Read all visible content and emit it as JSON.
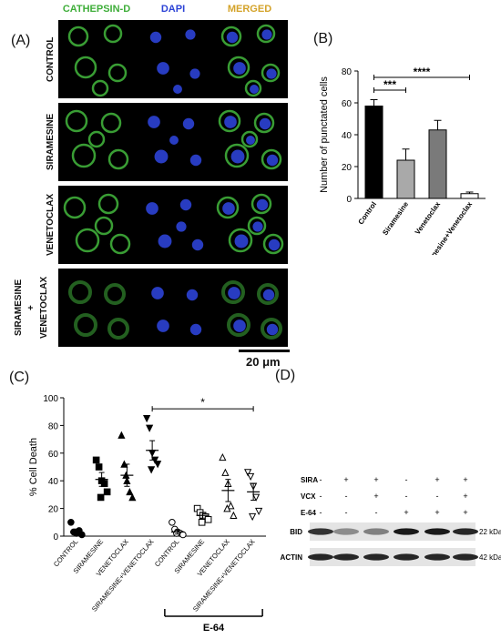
{
  "panels": {
    "a": "(A)",
    "b": "(B)",
    "c": "(C)",
    "d": "(D)"
  },
  "colors": {
    "green": "#3fae3a",
    "blue": "#2c43d6",
    "merged": "#d4a32a",
    "bar_control": "#000000",
    "bar_siramesine": "#a9a9a9",
    "bar_venetoclax": "#7a7a7a",
    "bar_combo": "#ffffff"
  },
  "micrograph": {
    "columns": [
      "CATHEPSIN-D",
      "DAPI",
      "MERGED"
    ],
    "rows": [
      "CONTROL",
      "SIRAMESINE",
      "VENETOCLAX",
      "SIRAMESINE\n+\nVENETOCLAX"
    ],
    "scale_bar": "20 μm"
  },
  "chart_data": [
    {
      "type": "bar",
      "panel": "B",
      "ylabel": "Number of punctated cells",
      "ylim": [
        0,
        80
      ],
      "yticks": [
        0,
        20,
        40,
        60,
        80
      ],
      "categories": [
        "Control",
        "Siramesine",
        "Venetoclax",
        "Siramesine+Venetoclax"
      ],
      "values": [
        58,
        24,
        43,
        3
      ],
      "errors": [
        4,
        7,
        6,
        1
      ],
      "annotations": [
        {
          "from": 0,
          "to": 1,
          "label": "***"
        },
        {
          "from": 0,
          "to": 3,
          "label": "****"
        }
      ]
    },
    {
      "type": "scatter",
      "panel": "C",
      "ylabel": "% Cell Death",
      "ylim": [
        0,
        100
      ],
      "yticks": [
        0,
        20,
        40,
        60,
        80,
        100
      ],
      "categories": [
        "CONTROL",
        "SIRAMESINE",
        "VENETOCLAX",
        "SIRAMESINE+VENETOCLAX",
        "CONTROL",
        "SIRAMESINE",
        "VENETOCLAX",
        "SIRAMESINE+VENETOCLAX"
      ],
      "group_label": "E-64",
      "series": [
        {
          "marker": "circle-filled",
          "points": [
            10,
            3,
            2,
            4,
            1,
            3
          ],
          "mean": 3,
          "sem": 1.5
        },
        {
          "marker": "square-filled",
          "points": [
            55,
            50,
            40,
            38,
            32,
            28
          ],
          "mean": 41,
          "sem": 5
        },
        {
          "marker": "triangle-filled",
          "points": [
            73,
            52,
            40,
            32,
            28,
            44
          ],
          "mean": 44,
          "sem": 8
        },
        {
          "marker": "triangle-down-filled",
          "points": [
            85,
            78,
            60,
            55,
            52,
            48
          ],
          "mean": 62,
          "sem": 7
        },
        {
          "marker": "circle-open",
          "points": [
            10,
            5,
            3,
            2,
            1,
            2
          ],
          "mean": 3,
          "sem": 1.5
        },
        {
          "marker": "square-open",
          "points": [
            20,
            17,
            15,
            14,
            12,
            10
          ],
          "mean": 15,
          "sem": 2
        },
        {
          "marker": "triangle-open",
          "points": [
            57,
            46,
            38,
            22,
            15,
            20
          ],
          "mean": 33,
          "sem": 8
        },
        {
          "marker": "triangle-down-open",
          "points": [
            46,
            43,
            36,
            28,
            18,
            14
          ],
          "mean": 32,
          "sem": 6
        }
      ],
      "annotations": [
        {
          "from": 3,
          "to": 7,
          "label": "*"
        }
      ]
    }
  ],
  "western": {
    "rows": [
      {
        "label": "SIRA",
        "values": [
          "-",
          "+",
          "+",
          "-",
          "+",
          "+"
        ]
      },
      {
        "label": "VCX",
        "values": [
          "-",
          "-",
          "+",
          "-",
          "-",
          "+"
        ]
      },
      {
        "label": "E-64",
        "values": [
          "-",
          "-",
          "-",
          "+",
          "+",
          "+"
        ]
      }
    ],
    "bands": [
      {
        "label": "BID",
        "size": "22 kDa",
        "intensity": [
          0.8,
          0.45,
          0.5,
          0.9,
          0.9,
          0.85
        ]
      },
      {
        "label": "ACTIN",
        "size": "42 kDa",
        "intensity": [
          0.85,
          0.85,
          0.85,
          0.85,
          0.85,
          0.85
        ]
      }
    ]
  }
}
